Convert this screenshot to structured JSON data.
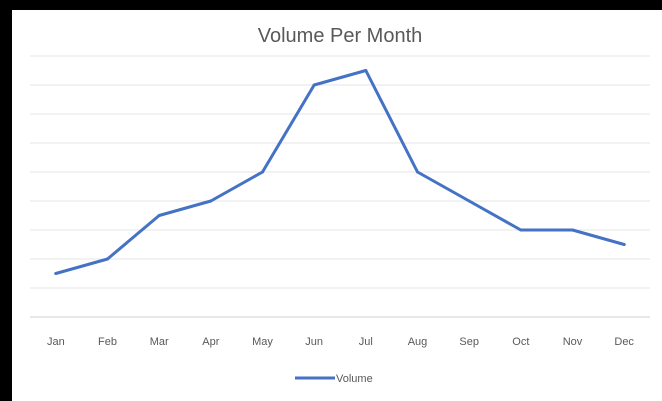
{
  "chart_data": {
    "type": "line",
    "title": "Volume Per Month",
    "xlabel": "",
    "ylabel": "",
    "categories": [
      "Jan",
      "Feb",
      "Mar",
      "Apr",
      "May",
      "Jun",
      "Jul",
      "Aug",
      "Sep",
      "Oct",
      "Nov",
      "Dec"
    ],
    "series": [
      {
        "name": "Volume",
        "values": [
          1.5,
          2.0,
          3.5,
          4.0,
          5.0,
          8.0,
          8.5,
          5.0,
          4.0,
          3.0,
          3.0,
          2.5
        ],
        "color": "#4472C4"
      }
    ],
    "ylim": [
      0,
      9
    ],
    "y_axis_labels_visible": false,
    "grid": true,
    "legend": "bottom"
  }
}
